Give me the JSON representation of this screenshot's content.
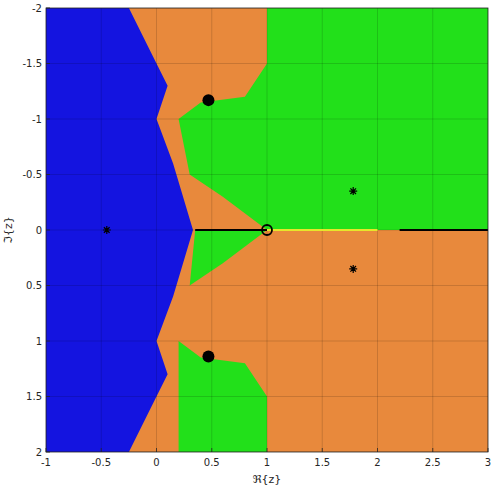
{
  "chart_data": {
    "type": "scatter",
    "xlabel": "ℜ{z}",
    "ylabel": "ℑ{z}",
    "xlim": [
      -1,
      3
    ],
    "ylim": [
      2,
      -2
    ],
    "xticks": [
      -1,
      -0.5,
      0,
      0.5,
      1,
      1.5,
      2,
      2.5,
      3
    ],
    "yticks": [
      -2,
      -1.5,
      -1,
      -0.5,
      0,
      0.5,
      1,
      1.5,
      2
    ],
    "grid": true,
    "basins": [
      {
        "color": "#e8893c",
        "points": [
          [
            -1,
            -2
          ],
          [
            3,
            -2
          ],
          [
            3,
            2
          ],
          [
            -1,
            2
          ]
        ]
      },
      {
        "color": "#22e01a",
        "points": [
          [
            1,
            -2
          ],
          [
            3,
            -2
          ],
          [
            3,
            0
          ],
          [
            1,
            0
          ],
          [
            0.6,
            -0.3
          ],
          [
            0.3,
            -0.5
          ],
          [
            0.2,
            -1.0
          ],
          [
            0.4,
            -1.15
          ],
          [
            0.8,
            -1.2
          ],
          [
            1,
            -1.5
          ]
        ]
      },
      {
        "color": "#22e01a",
        "points": [
          [
            0.35,
            0
          ],
          [
            1,
            0
          ],
          [
            0.6,
            0.3
          ],
          [
            0.3,
            0.5
          ]
        ]
      },
      {
        "color": "#22e01a",
        "points": [
          [
            0.2,
            1.0
          ],
          [
            0.4,
            1.15
          ],
          [
            0.8,
            1.2
          ],
          [
            1,
            1.5
          ],
          [
            1,
            2
          ],
          [
            0.2,
            2
          ]
        ]
      },
      {
        "color": "#1414e0",
        "points": [
          [
            -1,
            -2
          ],
          [
            -0.25,
            -2
          ],
          [
            -0.05,
            -1.6
          ],
          [
            0.1,
            -1.3
          ],
          [
            0.0,
            -1.0
          ],
          [
            0.15,
            -0.6
          ],
          [
            0.33,
            0
          ],
          [
            0.15,
            0.6
          ],
          [
            0.0,
            1.0
          ],
          [
            0.1,
            1.3
          ],
          [
            -0.05,
            1.6
          ],
          [
            -0.25,
            2
          ],
          [
            -1,
            2
          ]
        ]
      }
    ],
    "series": [
      {
        "type": "line",
        "color": "#000000",
        "x": [
          0.35,
          1,
          1.5,
          2.2,
          3
        ],
        "values": [
          0,
          0,
          null,
          0,
          0
        ]
      },
      {
        "type": "line",
        "color": "#e6e62a",
        "x": [
          1,
          2
        ],
        "values": [
          0,
          0
        ]
      },
      {
        "type": "scatter",
        "marker": "asterisk",
        "color": "#000000",
        "x": [
          -0.45,
          1.78,
          1.78
        ],
        "values": [
          0,
          -0.35,
          0.35
        ]
      },
      {
        "type": "scatter",
        "marker": "circle",
        "color": "#000000",
        "x": [
          0.47,
          0.47
        ],
        "values": [
          -1.17,
          1.14
        ]
      },
      {
        "type": "scatter",
        "marker": "circle-open",
        "color": "#000000",
        "x": [
          1
        ],
        "values": [
          0
        ]
      }
    ]
  }
}
